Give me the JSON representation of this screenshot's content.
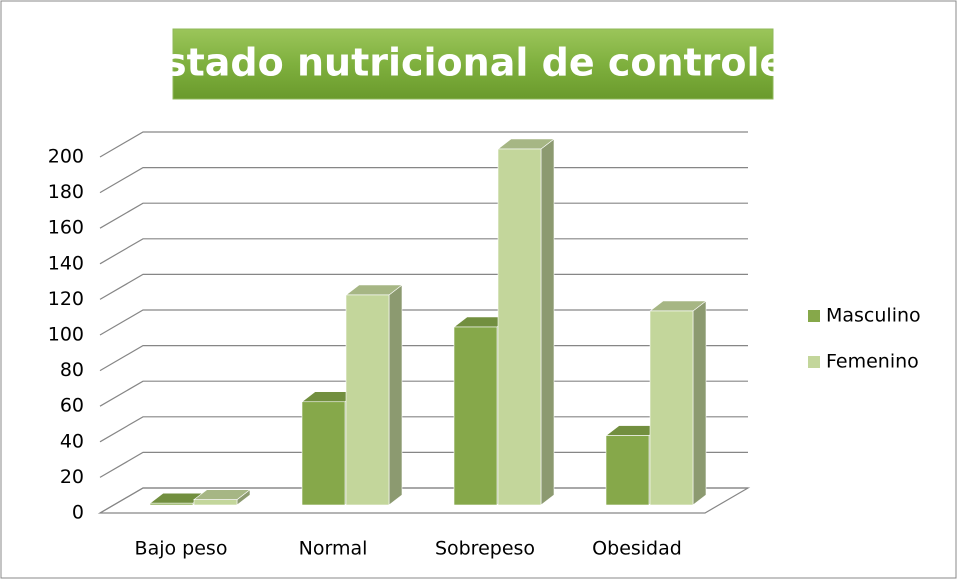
{
  "chart_data": {
    "type": "bar3d",
    "title": "Estado nutricional de controles",
    "categories": [
      "Bajo peso",
      "Normal",
      "Sobrepeso",
      "Obesidad"
    ],
    "series": [
      {
        "name": "Masculino",
        "color": "#86a84a",
        "values": [
          1,
          58,
          100,
          39
        ]
      },
      {
        "name": "Femenino",
        "color": "#c3d69b",
        "values": [
          3,
          118,
          200,
          109
        ]
      }
    ],
    "ylim": [
      0,
      200
    ],
    "yticks": [
      0,
      20,
      40,
      60,
      80,
      100,
      120,
      140,
      160,
      180,
      200
    ],
    "grid": true,
    "legend": "right"
  }
}
